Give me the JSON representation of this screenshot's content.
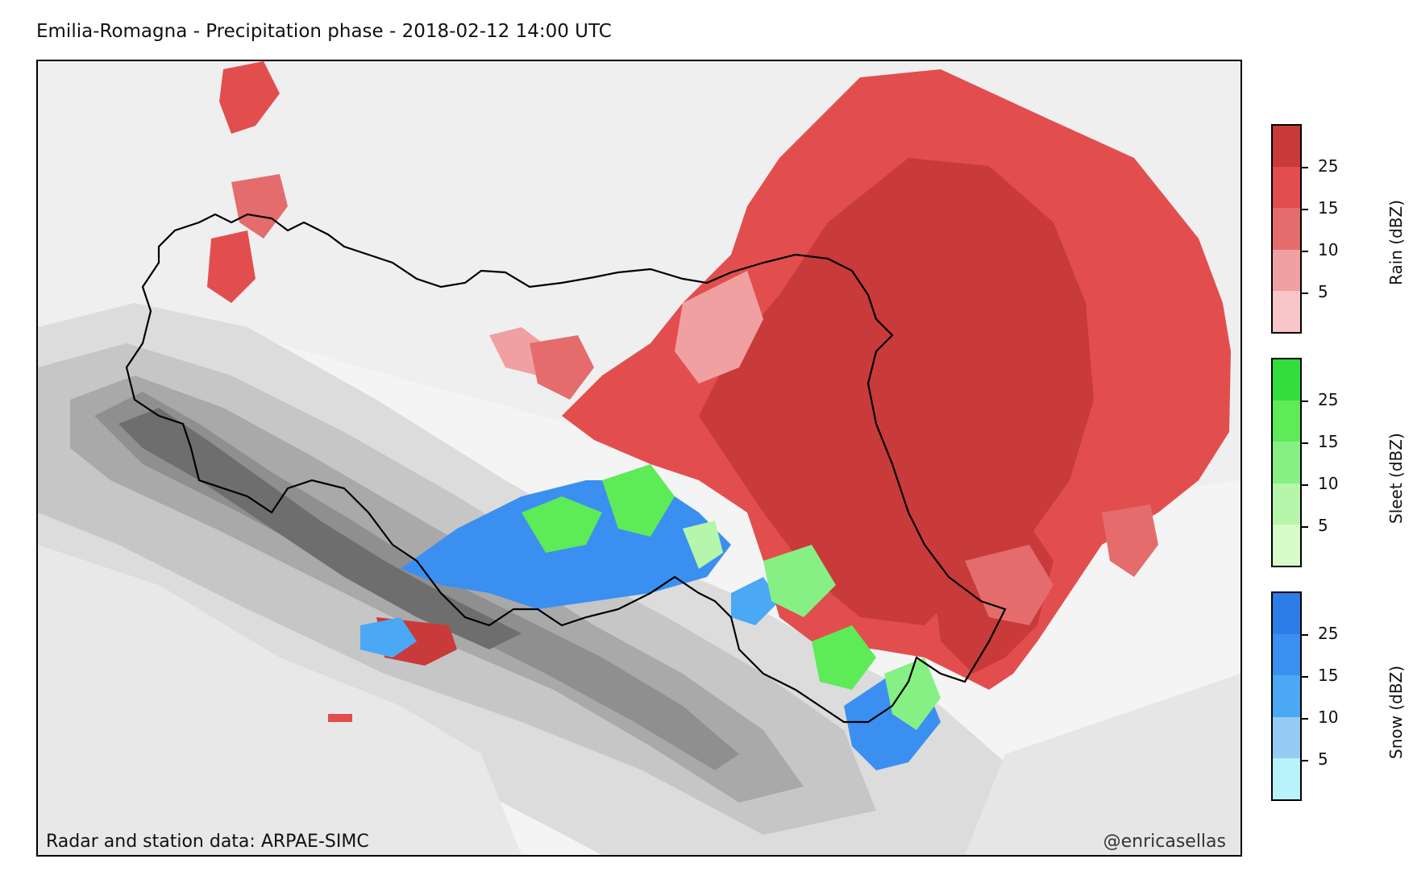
{
  "title": "Emilia-Romagna - Precipitation phase - 2018-02-12 14:00 UTC",
  "credits": {
    "left": "Radar and station data: ARPAE-SIMC",
    "right": "@enricasellas"
  },
  "colorbars": [
    {
      "name": "rain",
      "label": "Rain (dBZ)",
      "colors": [
        "#c93a3a",
        "#e24e4e",
        "#e46c6c",
        "#f0a0a0",
        "#f8c6c8"
      ],
      "ticks": [
        "25",
        "15",
        "10",
        "5"
      ]
    },
    {
      "name": "sleet",
      "label": "Sleet (dBZ)",
      "colors": [
        "#33dd3b",
        "#5deb58",
        "#86f084",
        "#b6f6aa",
        "#d6fbc8"
      ],
      "ticks": [
        "25",
        "15",
        "10",
        "5"
      ]
    },
    {
      "name": "snow",
      "label": "Snow (dBZ)",
      "colors": [
        "#2c7de8",
        "#3b8ff0",
        "#4aa8f5",
        "#96ccf4",
        "#b8f2fa"
      ],
      "ticks": [
        "25",
        "15",
        "10",
        "5"
      ]
    }
  ],
  "colors": {
    "background": "#f6f6f6",
    "border": "#000000"
  }
}
